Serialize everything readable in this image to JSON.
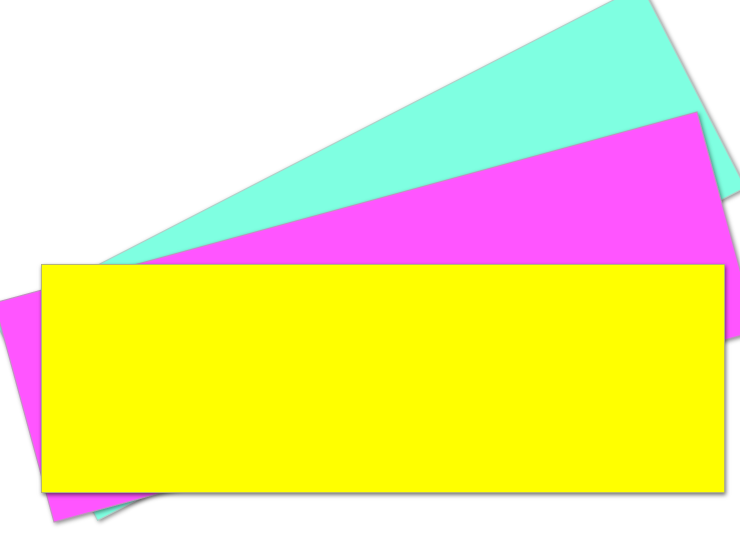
{
  "colors": {
    "background": "#ffffff",
    "card_back": "#7fffe1",
    "card_middle": "#ff55ff",
    "card_front": "#ffff00"
  },
  "cards": [
    {
      "name": "card-back",
      "color": "#7fffe1"
    },
    {
      "name": "card-middle",
      "color": "#ff55ff"
    },
    {
      "name": "card-front",
      "color": "#ffff00"
    }
  ]
}
